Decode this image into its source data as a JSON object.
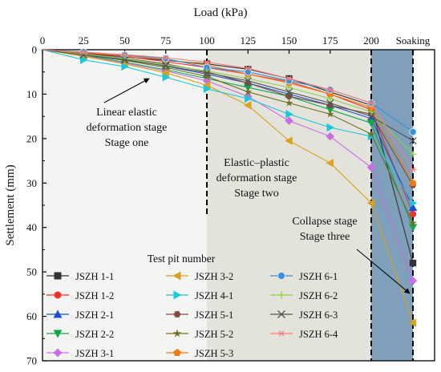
{
  "chart_data": {
    "type": "line",
    "title": "",
    "xlabel": "Load (kPa)",
    "ylabel": "Settlement (mm)",
    "x_categories": [
      "0",
      "25",
      "50",
      "75",
      "100",
      "125",
      "150",
      "175",
      "200",
      "Soaking"
    ],
    "x_tick_labels": [
      "0",
      "25",
      "50",
      "75",
      "100",
      "125",
      "150",
      "175",
      "200",
      "Soaking"
    ],
    "ylim": [
      0,
      70
    ],
    "y_ticks": [
      0,
      10,
      20,
      30,
      40,
      50,
      60,
      70
    ],
    "y_inverted": true,
    "x_axis_position": "top",
    "grid": false,
    "legend": {
      "title": "Test pit number",
      "placement": "bottom-left",
      "columns": 3
    },
    "stages": [
      {
        "name": "stage-one",
        "lines": [
          "Linear elastic",
          "deformation stage",
          "Stage one"
        ],
        "x_range": [
          "0",
          "100"
        ],
        "color": "#f4f4f2"
      },
      {
        "name": "stage-two",
        "lines": [
          "Elastic–plastic",
          "deformation stage",
          "Stage two"
        ],
        "x_range": [
          "100",
          "200"
        ],
        "color": "#e3e3dc"
      },
      {
        "name": "stage-three",
        "lines": [
          "Collapse stage",
          "Stage three"
        ],
        "x_range": [
          "200",
          "Soaking"
        ],
        "color": "#7f9fbb"
      }
    ],
    "series": [
      {
        "name": "JSZH 1-1",
        "color": "#333333",
        "marker": "square",
        "values": [
          0,
          0.8,
          1.6,
          2.4,
          3.2,
          4.4,
          6.5,
          9.5,
          12.5,
          48
        ]
      },
      {
        "name": "JSZH 1-2",
        "color": "#e8332e",
        "marker": "circle",
        "values": [
          0,
          0.7,
          1.5,
          2.7,
          4.0,
          5.5,
          7.2,
          10.0,
          13.5,
          37
        ]
      },
      {
        "name": "JSZH 2-1",
        "color": "#1f4fd0",
        "marker": "triangle",
        "values": [
          0,
          1.0,
          2.2,
          3.7,
          5.5,
          7.5,
          10.0,
          12.5,
          15.5,
          35.5
        ]
      },
      {
        "name": "JSZH 2-2",
        "color": "#11a84c",
        "marker": "tri-down",
        "values": [
          0,
          1.2,
          2.8,
          4.5,
          6.5,
          8.5,
          10.5,
          13.5,
          16.5,
          40
        ]
      },
      {
        "name": "JSZH 3-1",
        "color": "#c86ee0",
        "marker": "diamond",
        "values": [
          0,
          1.4,
          3.0,
          4.8,
          7.0,
          10.5,
          16.0,
          19.5,
          26.5,
          52
        ]
      },
      {
        "name": "JSZH 3-2",
        "color": "#d8a21c",
        "marker": "tri-left",
        "values": [
          0,
          1.5,
          3.2,
          5.2,
          8.0,
          12.5,
          20.5,
          25.5,
          34.5,
          61.5
        ]
      },
      {
        "name": "JSZH 4-1",
        "color": "#1ec6d9",
        "marker": "tri-right",
        "values": [
          0,
          2.3,
          3.8,
          6.2,
          8.8,
          11.0,
          14.5,
          17.5,
          19.5,
          34.5
        ]
      },
      {
        "name": "JSZH 5-1",
        "color": "#7a4e44",
        "marker": "hexagon",
        "values": [
          0,
          0.9,
          1.9,
          3.2,
          5.0,
          7.5,
          10.5,
          12.5,
          14.5,
          30.5
        ]
      },
      {
        "name": "JSZH 5-2",
        "color": "#707022",
        "marker": "star",
        "values": [
          0,
          1.1,
          2.4,
          4.0,
          6.0,
          9.5,
          12.0,
          14.5,
          19.0,
          39
        ]
      },
      {
        "name": "JSZH 5-3",
        "color": "#f07a14",
        "marker": "pentagon",
        "values": [
          0,
          0.6,
          1.3,
          2.2,
          3.5,
          5.5,
          7.5,
          10.0,
          13.0,
          30
        ]
      },
      {
        "name": "JSZH 6-1",
        "color": "#3a8fd8",
        "marker": "sphere",
        "values": [
          0,
          0.5,
          1.2,
          2.0,
          4.0,
          5.0,
          7.0,
          9.0,
          12.0,
          18.5
        ]
      },
      {
        "name": "JSZH 6-2",
        "color": "#8cd046",
        "marker": "plus",
        "values": [
          0,
          1.0,
          2.0,
          3.4,
          4.8,
          6.5,
          8.5,
          11.0,
          14.0,
          23.5
        ]
      },
      {
        "name": "JSZH 6-3",
        "color": "#555555",
        "marker": "x",
        "values": [
          0,
          1.2,
          2.3,
          3.6,
          5.2,
          7.0,
          9.5,
          12.0,
          15.0,
          20.5
        ]
      },
      {
        "name": "JSZH 6-4",
        "color": "#f2807e",
        "marker": "asterisk",
        "values": [
          0,
          0.6,
          1.1,
          1.8,
          2.8,
          4.2,
          6.5,
          9.0,
          12.0,
          27
        ]
      }
    ]
  }
}
